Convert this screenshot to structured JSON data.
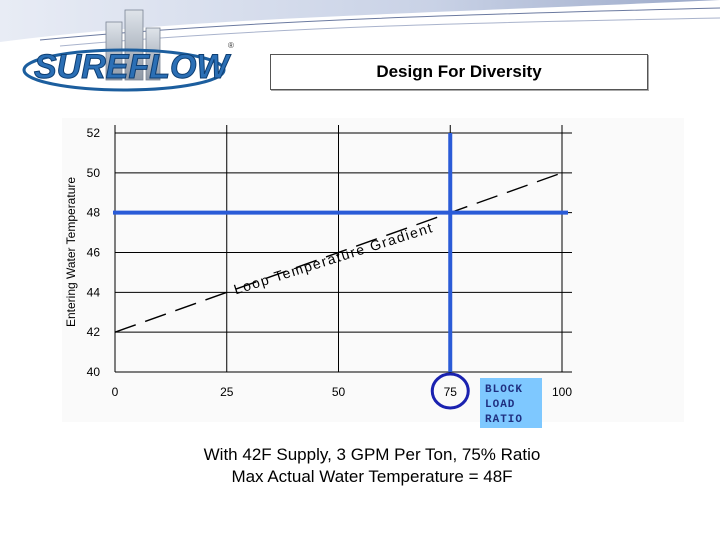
{
  "header": {
    "logo_text": "SUREFLOW",
    "registered_mark": "®",
    "title": "Design For Diversity"
  },
  "chart_data": {
    "type": "line",
    "title": "",
    "xlabel": "",
    "ylabel": "Entering Water Temperature",
    "xlim": [
      0,
      100
    ],
    "ylim": [
      40,
      52
    ],
    "x_ticks": [
      0,
      25,
      50,
      75,
      100
    ],
    "y_ticks": [
      40,
      42,
      44,
      46,
      48,
      50,
      52
    ],
    "grid": true,
    "series": [
      {
        "name": "Loop Temperature Gradient",
        "style": "dashed",
        "color": "#000000",
        "x": [
          0,
          100
        ],
        "y": [
          42,
          50
        ]
      }
    ],
    "reference_lines": [
      {
        "axis": "x",
        "value": 75,
        "color": "#2a5bd7"
      },
      {
        "axis": "y",
        "value": 48,
        "color": "#2a5bd7"
      }
    ],
    "annotations": [
      {
        "text": "BLOCK",
        "color": "#1f2f80",
        "background": "#7ec8ff"
      },
      {
        "text": "LOAD",
        "color": "#1f2f80",
        "background": "#7ec8ff"
      },
      {
        "text": "RATIO",
        "color": "#1f2f80",
        "background": "#7ec8ff"
      }
    ],
    "highlight_tick": {
      "axis": "x",
      "value": 75,
      "color": "#1a22b0"
    }
  },
  "caption": {
    "line1": "With 42F Supply, 3 GPM Per Ton, 75% Ratio",
    "line2": "Max Actual Water Temperature = 48F"
  }
}
